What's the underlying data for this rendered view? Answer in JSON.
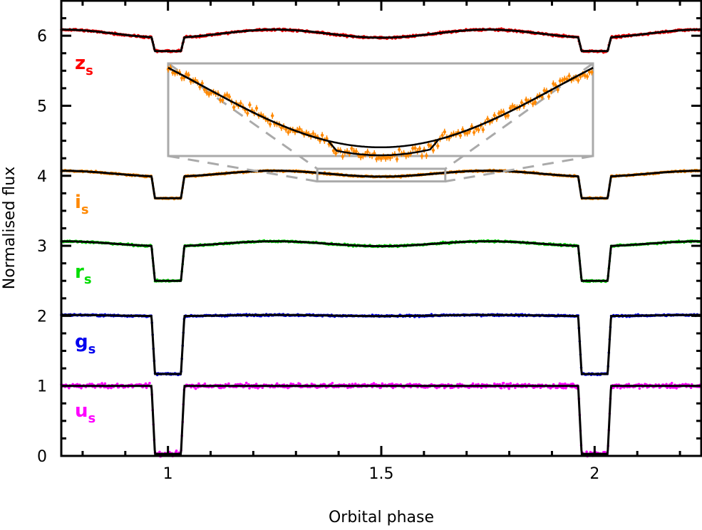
{
  "chart_data": {
    "type": "scatter",
    "title": "",
    "xlabel": "Orbital phase",
    "ylabel": "Normalised flux",
    "xlim": [
      0.75,
      2.25
    ],
    "ylim": [
      0,
      6.5
    ],
    "x_ticks": [
      1,
      1.5,
      2
    ],
    "x_tick_labels": [
      "1",
      "1.5",
      "2"
    ],
    "y_ticks": [
      0,
      1,
      2,
      3,
      4,
      5,
      6
    ],
    "y_tick_labels": [
      "0",
      "1",
      "2",
      "3",
      "4",
      "5",
      "6"
    ],
    "model_color": "#000000",
    "primary_eclipse": {
      "centers": [
        1.0,
        2.0
      ],
      "half_width_contact": 0.0385,
      "half_width_flat": 0.0305
    },
    "series": [
      {
        "name": "us",
        "letter": "u",
        "sub": "s",
        "color": "#ff00ff",
        "baseline": 1.0,
        "ellipsoidal_amp": 0.0,
        "eclipse_bottom": 0.03,
        "noise": 0.022
      },
      {
        "name": "gs",
        "letter": "g",
        "sub": "s",
        "color": "#0000ee",
        "baseline": 2.005,
        "ellipsoidal_amp": 0.008,
        "eclipse_bottom": 1.17,
        "noise": 0.008
      },
      {
        "name": "rs",
        "letter": "r",
        "sub": "s",
        "color": "#00dd00",
        "baseline": 3.03,
        "ellipsoidal_amp": 0.035,
        "eclipse_bottom": 2.5,
        "noise": 0.008
      },
      {
        "name": "is",
        "letter": "i",
        "sub": "s",
        "color": "#ff8800",
        "baseline": 4.03,
        "ellipsoidal_amp": 0.042,
        "eclipse_bottom": 3.68,
        "noise": 0.008
      },
      {
        "name": "zs",
        "letter": "z",
        "sub": "s",
        "color": "#ff0000",
        "baseline": 6.03,
        "ellipsoidal_amp": 0.058,
        "eclipse_bottom": 5.78,
        "noise": 0.01
      }
    ],
    "inset": {
      "band": "is",
      "xlim": [
        1.35,
        1.65
      ],
      "ylim": [
        3.982,
        4.046
      ],
      "source_box_flux": [
        3.92,
        4.1
      ],
      "secondary_eclipse": {
        "ingress": 1.463,
        "egress": 1.541,
        "ramp": 0.006,
        "depth": 0.0055
      },
      "noise": 0.0028,
      "error_bar": 0.0022
    }
  }
}
